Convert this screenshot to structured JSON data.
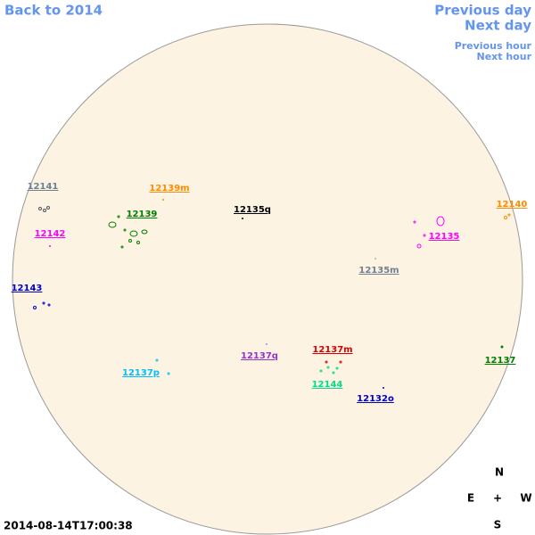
{
  "navigation": {
    "back": "Back to 2014",
    "previous_day": "Previous day",
    "next_day": "Next day",
    "previous_hour": "Previous hour",
    "next_hour": "Next hour"
  },
  "regions": [
    {
      "label": "12141",
      "color": "#708090"
    },
    {
      "label": "12139m",
      "color": "#ff8c00"
    },
    {
      "label": "12135q",
      "color": "#000000"
    },
    {
      "label": "12139",
      "color": "#008000"
    },
    {
      "label": "12142",
      "color": "#ff00ff"
    },
    {
      "label": "12140",
      "color": "#ff8c00"
    },
    {
      "label": "12135",
      "color": "#ff00ff"
    },
    {
      "label": "12135m",
      "color": "#708090"
    },
    {
      "label": "12143",
      "color": "#0000cd"
    },
    {
      "label": "12137m",
      "color": "#dd0000"
    },
    {
      "label": "12137q",
      "color": "#9932cc"
    },
    {
      "label": "12137p",
      "color": "#00bfff"
    },
    {
      "label": "12144",
      "color": "#00dd88"
    },
    {
      "label": "12132o",
      "color": "#0000cd"
    },
    {
      "label": "12137",
      "color": "#008000"
    }
  ],
  "compass": {
    "north": "N",
    "east": "E",
    "center": "+",
    "west": "W",
    "south": "S"
  },
  "timestamp": "2014-08-14T17:00:38"
}
